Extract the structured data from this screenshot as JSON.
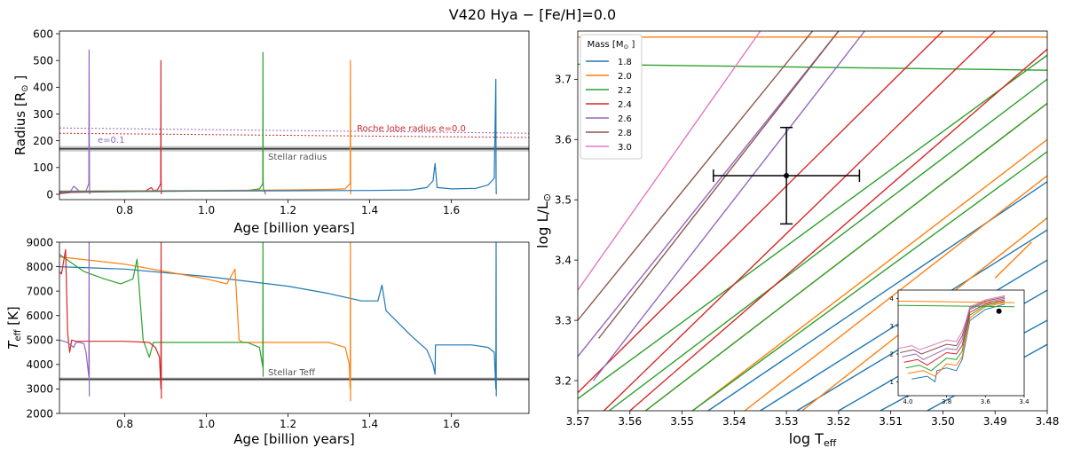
{
  "figure": {
    "title": "V420 Hya − [Fe/H]=0.0"
  },
  "colors": {
    "1.8": "#1f77b4",
    "2.0": "#ff7f0e",
    "2.2": "#2ca02c",
    "2.4": "#d62728",
    "2.6": "#9467bd",
    "2.8": "#8c564b",
    "3.0": "#e377c2",
    "observed_band": "#c8c8c8",
    "observed_line": "#3a3a3a"
  },
  "chart_data": [
    {
      "id": "radius",
      "type": "line",
      "xlabel": "Age [billion years]",
      "ylabel_main": "Radius [R",
      "ylabel_sun": "⊙",
      "ylabel_end": "]",
      "xlim": [
        0.64,
        1.79
      ],
      "ylim": [
        -20,
        610
      ],
      "xticks": [
        0.8,
        1.0,
        1.2,
        1.4,
        1.6
      ],
      "xtick_labels": [
        "0.8",
        "1.0",
        "1.2",
        "1.4",
        "1.6"
      ],
      "yticks": [
        0,
        100,
        200,
        300,
        400,
        500,
        600
      ],
      "ytick_labels": [
        "0",
        "100",
        "200",
        "300",
        "400",
        "500",
        "600"
      ],
      "stellar_radius": {
        "value": 170,
        "band": [
          160,
          180
        ],
        "label": "Stellar radius"
      },
      "roche_lobe": [
        {
          "label": "Roche lobe radius e=0.0",
          "color_key": "2.4",
          "x": [
            0.64,
            1.79
          ],
          "y": [
            228,
            212
          ]
        },
        {
          "label": "e=0.1",
          "color_key": "2.6",
          "x": [
            0.64,
            1.79
          ],
          "y": [
            248,
            228
          ]
        }
      ],
      "series": [
        {
          "mass": "2.6",
          "x": [
            0.64,
            0.665,
            0.675,
            0.69,
            0.705,
            0.712,
            0.7125,
            0.7135,
            0.714
          ],
          "y": [
            2,
            6,
            30,
            10,
            12,
            40,
            540,
            60,
            0
          ]
        },
        {
          "mass": "2.4",
          "x": [
            0.64,
            0.7,
            0.8,
            0.85,
            0.865,
            0.87,
            0.88,
            0.888,
            0.8885,
            0.889,
            0.8895
          ],
          "y": [
            6,
            8,
            10,
            12,
            25,
            14,
            16,
            40,
            500,
            60,
            0
          ]
        },
        {
          "mass": "2.2",
          "x": [
            0.64,
            0.8,
            1.0,
            1.1,
            1.12,
            1.13,
            1.138,
            1.1385,
            1.139,
            1.1395,
            1.145
          ],
          "y": [
            9,
            10,
            12,
            14,
            18,
            20,
            40,
            530,
            55,
            20,
            0
          ]
        },
        {
          "mass": "2.0",
          "x": [
            0.64,
            0.8,
            1.0,
            1.2,
            1.3,
            1.34,
            1.352,
            1.3525,
            1.353,
            1.3535
          ],
          "y": [
            12,
            13,
            14,
            16,
            18,
            20,
            40,
            500,
            60,
            0
          ]
        },
        {
          "mass": "1.8",
          "x": [
            0.64,
            0.8,
            1.0,
            1.2,
            1.4,
            1.5,
            1.54,
            1.555,
            1.56,
            1.565,
            1.6,
            1.66,
            1.69,
            1.705,
            1.709,
            1.7095,
            1.71
          ],
          "y": [
            10,
            11,
            12,
            13,
            14,
            16,
            25,
            50,
            115,
            25,
            20,
            22,
            35,
            60,
            430,
            50,
            0
          ]
        }
      ]
    },
    {
      "id": "teff",
      "type": "line",
      "xlabel": "Age [billion years]",
      "ylabel_main": "T",
      "ylabel_sub": "eff",
      "ylabel_end": " [K]",
      "xlim": [
        0.64,
        1.79
      ],
      "ylim": [
        2000,
        9000
      ],
      "xticks": [
        0.8,
        1.0,
        1.2,
        1.4,
        1.6
      ],
      "xtick_labels": [
        "0.8",
        "1.0",
        "1.2",
        "1.4",
        "1.6"
      ],
      "yticks": [
        2000,
        3000,
        4000,
        5000,
        6000,
        7000,
        8000,
        9000
      ],
      "ytick_labels": [
        "2000",
        "3000",
        "4000",
        "5000",
        "6000",
        "7000",
        "8000",
        "9000"
      ],
      "stellar_teff": {
        "value": 3400,
        "band": [
          3330,
          3470
        ],
        "label": "Stellar Teff"
      },
      "series": [
        {
          "mass": "1.8",
          "x": [
            0.64,
            0.8,
            1.0,
            1.2,
            1.3,
            1.38,
            1.42,
            1.43,
            1.44,
            1.5,
            1.54,
            1.555,
            1.56,
            1.561,
            1.58,
            1.65,
            1.69,
            1.705,
            1.709,
            1.7095,
            1.71
          ],
          "y": [
            8000,
            7900,
            7600,
            7200,
            6900,
            6600,
            6600,
            7250,
            6200,
            5200,
            4600,
            4000,
            3600,
            4800,
            4800,
            4800,
            4700,
            4500,
            3000,
            9000,
            2700
          ]
        },
        {
          "mass": "2.0",
          "x": [
            0.64,
            0.8,
            1.0,
            1.05,
            1.07,
            1.08,
            1.09,
            1.1,
            1.2,
            1.3,
            1.34,
            1.35,
            1.352,
            1.3525,
            1.353
          ],
          "y": [
            8400,
            8100,
            7500,
            7300,
            7900,
            5000,
            4900,
            4900,
            4900,
            4900,
            4700,
            4000,
            3000,
            9000,
            2500
          ]
        },
        {
          "mass": "2.2",
          "x": [
            0.64,
            0.7,
            0.75,
            0.79,
            0.82,
            0.83,
            0.845,
            0.86,
            0.87,
            0.9,
            1.0,
            1.1,
            1.13,
            1.138,
            1.1385,
            1.139
          ],
          "y": [
            8500,
            7800,
            7500,
            7300,
            7500,
            8300,
            5000,
            4300,
            4900,
            4900,
            4900,
            4900,
            4700,
            3900,
            9000,
            3500
          ]
        },
        {
          "mass": "2.4",
          "x": [
            0.64,
            0.645,
            0.655,
            0.66,
            0.665,
            0.67,
            0.68,
            0.7,
            0.8,
            0.86,
            0.875,
            0.885,
            0.8885,
            0.889,
            0.8895
          ],
          "y": [
            7800,
            7700,
            8700,
            5300,
            4500,
            5000,
            4950,
            4950,
            4950,
            4900,
            4700,
            4300,
            3000,
            9000,
            2600
          ]
        },
        {
          "mass": "2.6",
          "x": [
            0.64,
            0.66,
            0.675,
            0.68,
            0.69,
            0.7,
            0.705,
            0.712,
            0.7125,
            0.713
          ],
          "y": [
            5000,
            4900,
            4700,
            4900,
            4900,
            4850,
            4500,
            3500,
            9000,
            2700
          ]
        }
      ]
    },
    {
      "id": "hrd",
      "type": "line",
      "xlabel": "log T",
      "xlabel_sub": "eff",
      "ylabel": "log L/L",
      "ylabel_sub": "⊙",
      "xlim": [
        3.57,
        3.48
      ],
      "ylim": [
        3.15,
        3.78
      ],
      "xticks": [
        3.57,
        3.56,
        3.55,
        3.54,
        3.53,
        3.52,
        3.51,
        3.5,
        3.49,
        3.48
      ],
      "xtick_labels": [
        "3.57",
        "3.56",
        "3.55",
        "3.54",
        "3.53",
        "3.52",
        "3.51",
        "3.50",
        "3.49",
        "3.48"
      ],
      "yticks": [
        3.2,
        3.3,
        3.4,
        3.5,
        3.6,
        3.7
      ],
      "ytick_labels": [
        "3.2",
        "3.3",
        "3.4",
        "3.5",
        "3.6",
        "3.7"
      ],
      "observation": {
        "logTeff": 3.53,
        "logTeff_err": 0.014,
        "logL": 3.54,
        "logL_err": 0.08
      },
      "legend": {
        "title_main": "Mass [M",
        "title_sun": "⊙",
        "title_end": "]",
        "placement": "upper-left",
        "entries": [
          "1.8",
          "2.0",
          "2.2",
          "2.4",
          "2.6",
          "2.8",
          "3.0"
        ]
      },
      "series": [
        {
          "mass": "1.8",
          "lines": [
            {
              "x": [
                3.545,
                3.48
              ],
              "y": [
                3.15,
                3.53
              ]
            },
            {
              "x": [
                3.535,
                3.48
              ],
              "y": [
                3.15,
                3.45
              ]
            },
            {
              "x": [
                3.528,
                3.48
              ],
              "y": [
                3.15,
                3.4
              ]
            },
            {
              "x": [
                3.52,
                3.48
              ],
              "y": [
                3.15,
                3.35
              ]
            },
            {
              "x": [
                3.512,
                3.48
              ],
              "y": [
                3.15,
                3.3
              ]
            },
            {
              "x": [
                3.503,
                3.48
              ],
              "y": [
                3.15,
                3.26
              ]
            }
          ]
        },
        {
          "mass": "2.0",
          "lines": [
            {
              "x": [
                3.557,
                3.48
              ],
              "y": [
                3.15,
                3.66
              ]
            },
            {
              "x": [
                3.548,
                3.48
              ],
              "y": [
                3.15,
                3.6
              ]
            },
            {
              "x": [
                3.538,
                3.48
              ],
              "y": [
                3.15,
                3.54
              ]
            },
            {
              "x": [
                3.527,
                3.48
              ],
              "y": [
                3.15,
                3.47
              ]
            },
            {
              "x": [
                3.49,
                3.483
              ],
              "y": [
                3.37,
                3.43
              ]
            },
            {
              "x": [
                3.57,
                3.48
              ],
              "y": [
                3.77,
                3.77
              ]
            }
          ]
        },
        {
          "mass": "2.2",
          "lines": [
            {
              "x": [
                3.57,
                3.48
              ],
              "y": [
                3.17,
                3.74
              ]
            },
            {
              "x": [
                3.564,
                3.48
              ],
              "y": [
                3.15,
                3.7
              ]
            },
            {
              "x": [
                3.557,
                3.48
              ],
              "y": [
                3.15,
                3.66
              ]
            },
            {
              "x": [
                3.548,
                3.48
              ],
              "y": [
                3.15,
                3.58
              ]
            },
            {
              "x": [
                3.57,
                3.48
              ],
              "y": [
                3.725,
                3.715
              ]
            }
          ]
        },
        {
          "mass": "2.4",
          "lines": [
            {
              "x": [
                3.57,
                3.5
              ],
              "y": [
                3.18,
                3.78
              ]
            },
            {
              "x": [
                3.565,
                3.49
              ],
              "y": [
                3.15,
                3.78
              ]
            },
            {
              "x": [
                3.56,
                3.48
              ],
              "y": [
                3.15,
                3.75
              ]
            }
          ]
        },
        {
          "mass": "2.6",
          "lines": [
            {
              "x": [
                3.57,
                3.52
              ],
              "y": [
                3.24,
                3.78
              ]
            },
            {
              "x": [
                3.567,
                3.515
              ],
              "y": [
                3.2,
                3.78
              ]
            }
          ]
        },
        {
          "mass": "2.8",
          "lines": [
            {
              "x": [
                3.57,
                3.525
              ],
              "y": [
                3.3,
                3.78
              ]
            },
            {
              "x": [
                3.566,
                3.52
              ],
              "y": [
                3.27,
                3.78
              ]
            }
          ]
        },
        {
          "mass": "3.0",
          "lines": [
            {
              "x": [
                3.57,
                3.535
              ],
              "y": [
                3.35,
                3.78
              ]
            }
          ]
        }
      ]
    },
    {
      "id": "hrd-inset",
      "type": "line",
      "xlim": [
        4.05,
        3.4
      ],
      "ylim": [
        0.5,
        4.3
      ],
      "xticks": [
        4.0,
        3.8,
        3.6,
        3.4
      ],
      "xtick_labels": [
        "4.0",
        "3.8",
        "3.6",
        "3.4"
      ],
      "yticks": [
        1,
        2,
        3,
        4
      ],
      "ytick_labels": [
        "1",
        "2",
        "3",
        "4"
      ],
      "observation": {
        "logTeff": 3.53,
        "logL": 3.54
      },
      "series": [
        {
          "mass": "1.8",
          "x": [
            3.98,
            3.9,
            3.86,
            3.85,
            3.8,
            3.75,
            3.72,
            3.7,
            3.68,
            3.6,
            3.5
          ],
          "y": [
            1.1,
            1.2,
            1.0,
            1.4,
            1.5,
            1.4,
            1.8,
            2.5,
            3.2,
            3.6,
            3.8
          ]
        },
        {
          "mass": "2.0",
          "x": [
            4.0,
            3.92,
            3.86,
            3.8,
            3.75,
            3.72,
            3.7,
            3.68,
            3.6,
            3.5
          ],
          "y": [
            1.3,
            1.4,
            1.2,
            1.65,
            1.6,
            1.9,
            2.6,
            3.3,
            3.7,
            3.85
          ]
        },
        {
          "mass": "2.2",
          "x": [
            4.01,
            3.94,
            3.88,
            3.8,
            3.75,
            3.72,
            3.7,
            3.68,
            3.6,
            3.5
          ],
          "y": [
            1.5,
            1.6,
            1.4,
            1.85,
            1.8,
            2.1,
            2.8,
            3.4,
            3.75,
            3.9
          ]
        },
        {
          "mass": "2.4",
          "x": [
            4.02,
            3.95,
            3.9,
            3.8,
            3.75,
            3.72,
            3.7,
            3.68,
            3.6,
            3.5
          ],
          "y": [
            1.7,
            1.8,
            1.6,
            2.05,
            2.0,
            2.3,
            2.9,
            3.5,
            3.8,
            3.95
          ]
        },
        {
          "mass": "2.6",
          "x": [
            4.03,
            3.96,
            3.92,
            3.8,
            3.75,
            3.72,
            3.7,
            3.68,
            3.6,
            3.5
          ],
          "y": [
            1.9,
            2.0,
            1.8,
            2.2,
            2.15,
            2.5,
            3.0,
            3.6,
            3.85,
            4.0
          ]
        },
        {
          "mass": "2.8",
          "x": [
            4.04,
            3.97,
            3.93,
            3.8,
            3.75,
            3.72,
            3.7,
            3.68,
            3.6,
            3.5
          ],
          "y": [
            2.05,
            2.15,
            2.0,
            2.35,
            2.3,
            2.65,
            3.1,
            3.65,
            3.9,
            4.05
          ]
        },
        {
          "mass": "3.0",
          "x": [
            4.05,
            3.98,
            3.94,
            3.8,
            3.75,
            3.72,
            3.7,
            3.68,
            3.6,
            3.5
          ],
          "y": [
            2.2,
            2.3,
            2.15,
            2.5,
            2.45,
            2.8,
            3.2,
            3.7,
            3.95,
            4.1
          ]
        },
        {
          "mass": "2.0",
          "x": [
            4.05,
            3.45
          ],
          "y": [
            3.9,
            3.85
          ]
        },
        {
          "mass": "2.2",
          "x": [
            4.05,
            3.45
          ],
          "y": [
            3.75,
            3.7
          ]
        }
      ]
    }
  ]
}
